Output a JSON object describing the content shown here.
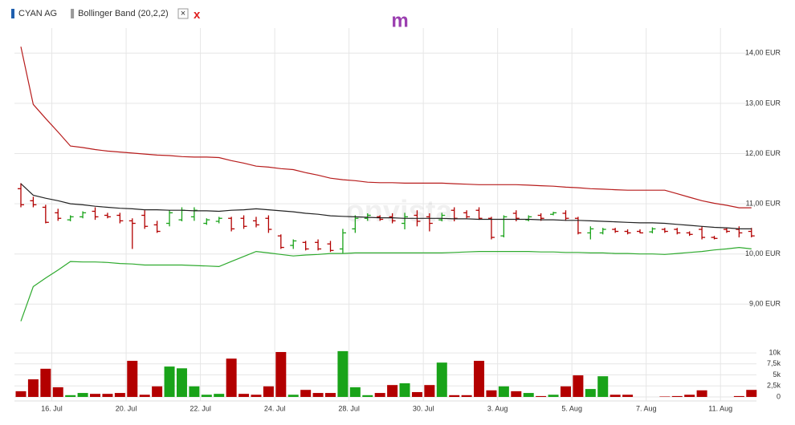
{
  "legend": {
    "close_button": "×",
    "remove": "x"
  },
  "logo": "m",
  "chart_data": [
    {
      "type": "ohlc",
      "watermark": "onvista",
      "categories": [
        null,
        null,
        null,
        "16. Jul",
        null,
        null,
        null,
        null,
        null,
        "20. Jul",
        null,
        null,
        null,
        null,
        null,
        "22. Jul",
        null,
        null,
        null,
        null,
        null,
        "24. Jul",
        null,
        null,
        null,
        null,
        null,
        "28. Jul",
        null,
        null,
        null,
        null,
        null,
        "30. Jul",
        null,
        null,
        null,
        null,
        null,
        "3. Aug",
        null,
        null,
        null,
        null,
        null,
        "5. Aug",
        null,
        null,
        null,
        null,
        null,
        "7. Aug",
        null,
        null,
        null,
        null,
        null,
        "11. Aug",
        null,
        null
      ],
      "series": [
        {
          "name": "CYAN AG",
          "color": "#1f5fae",
          "up_color": "#19a319",
          "down_color": "#b30000",
          "open": [
            11.3,
            11.06,
            10.93,
            10.82,
            10.68,
            10.74,
            10.85,
            10.77,
            10.77,
            10.66,
            10.77,
            10.58,
            10.61,
            10.68,
            10.74,
            10.61,
            10.65,
            10.71,
            10.71,
            10.66,
            10.71,
            10.36,
            10.17,
            10.23,
            10.23,
            10.2,
            10.1,
            10.5,
            10.71,
            10.74,
            10.74,
            10.61,
            10.77,
            10.74,
            10.68,
            10.87,
            10.82,
            10.87,
            10.71,
            10.36,
            10.81,
            10.68,
            10.77,
            10.79,
            10.81,
            10.71,
            10.42,
            10.42,
            10.49,
            10.45,
            10.45,
            10.44,
            10.49,
            10.49,
            10.42,
            10.49,
            10.33,
            10.49,
            10.49,
            10.45
          ],
          "high": [
            11.41,
            11.14,
            10.98,
            10.9,
            10.77,
            10.85,
            10.93,
            10.82,
            10.82,
            10.71,
            10.87,
            10.66,
            10.87,
            10.93,
            10.93,
            10.71,
            10.74,
            10.74,
            10.77,
            10.74,
            10.77,
            10.39,
            10.29,
            10.26,
            10.29,
            10.26,
            10.5,
            10.77,
            10.81,
            10.77,
            10.81,
            10.82,
            10.87,
            10.81,
            10.82,
            10.93,
            10.87,
            10.93,
            10.74,
            10.77,
            10.87,
            10.77,
            10.81,
            10.84,
            10.87,
            10.74,
            10.55,
            10.52,
            10.52,
            10.49,
            10.49,
            10.53,
            10.52,
            10.52,
            10.45,
            10.55,
            10.36,
            10.52,
            10.55,
            10.52
          ],
          "low": [
            10.93,
            10.93,
            10.61,
            10.66,
            10.65,
            10.71,
            10.68,
            10.71,
            10.61,
            10.1,
            10.5,
            10.42,
            10.55,
            10.65,
            10.66,
            10.58,
            10.61,
            10.45,
            10.5,
            10.53,
            10.42,
            10.1,
            10.1,
            10.07,
            10.07,
            10.04,
            10.02,
            10.42,
            10.66,
            10.66,
            10.61,
            10.49,
            10.55,
            10.45,
            10.65,
            10.65,
            10.71,
            10.68,
            10.29,
            10.33,
            10.65,
            10.65,
            10.66,
            10.77,
            10.66,
            10.39,
            10.29,
            10.39,
            10.42,
            10.39,
            10.41,
            10.41,
            10.42,
            10.39,
            10.36,
            10.29,
            10.29,
            10.42,
            10.33,
            10.33
          ],
          "close": [
            10.98,
            10.98,
            10.63,
            10.71,
            10.74,
            10.82,
            10.74,
            10.74,
            10.66,
            10.61,
            10.55,
            10.45,
            10.82,
            10.87,
            10.87,
            10.68,
            10.71,
            10.5,
            10.55,
            10.58,
            10.49,
            10.13,
            10.26,
            10.1,
            10.1,
            10.07,
            10.42,
            10.71,
            10.77,
            10.69,
            10.66,
            10.74,
            10.65,
            10.61,
            10.77,
            10.71,
            10.74,
            10.71,
            10.33,
            10.74,
            10.71,
            10.74,
            10.71,
            10.82,
            10.71,
            10.42,
            10.5,
            10.49,
            10.45,
            10.42,
            10.42,
            10.5,
            10.45,
            10.42,
            10.39,
            10.33,
            10.31,
            10.45,
            10.42,
            10.36
          ]
        },
        {
          "name": "Bollinger Band (20,2,2)",
          "color": "#999999",
          "bands": [
            {
              "color": "#b71c1c",
              "values": [
                14.13,
                12.98,
                12.7,
                12.43,
                12.15,
                12.12,
                12.08,
                12.05,
                12.03,
                12.01,
                11.99,
                11.97,
                11.96,
                11.94,
                11.93,
                11.93,
                11.92,
                11.86,
                11.81,
                11.75,
                11.73,
                11.7,
                11.68,
                11.62,
                11.57,
                11.51,
                11.48,
                11.46,
                11.43,
                11.42,
                11.42,
                11.41,
                11.41,
                11.41,
                11.41,
                11.4,
                11.39,
                11.38,
                11.38,
                11.38,
                11.38,
                11.37,
                11.36,
                11.35,
                11.33,
                11.32,
                11.3,
                11.29,
                11.28,
                11.27,
                11.27,
                11.27,
                11.27,
                11.2,
                11.13,
                11.06,
                11.01,
                10.97,
                10.92,
                10.92
              ]
            },
            {
              "color": "#222222",
              "values": [
                11.4,
                11.17,
                11.11,
                11.06,
                11.0,
                10.98,
                10.95,
                10.93,
                10.91,
                10.9,
                10.88,
                10.88,
                10.87,
                10.87,
                10.86,
                10.86,
                10.85,
                10.87,
                10.88,
                10.9,
                10.88,
                10.86,
                10.84,
                10.81,
                10.79,
                10.76,
                10.75,
                10.74,
                10.73,
                10.72,
                10.72,
                10.71,
                10.71,
                10.71,
                10.71,
                10.7,
                10.7,
                10.69,
                10.69,
                10.69,
                10.69,
                10.69,
                10.68,
                10.68,
                10.67,
                10.67,
                10.66,
                10.65,
                10.64,
                10.63,
                10.62,
                10.62,
                10.61,
                10.59,
                10.57,
                10.55,
                10.53,
                10.52,
                10.5,
                10.5
              ]
            },
            {
              "color": "#2eaa2e",
              "values": [
                8.66,
                9.35,
                9.52,
                9.68,
                9.85,
                9.84,
                9.84,
                9.83,
                9.81,
                9.8,
                9.78,
                9.78,
                9.78,
                9.78,
                9.77,
                9.76,
                9.75,
                9.85,
                9.95,
                10.05,
                10.02,
                9.99,
                9.96,
                9.98,
                9.99,
                10.01,
                10.01,
                10.02,
                10.02,
                10.02,
                10.02,
                10.02,
                10.02,
                10.02,
                10.02,
                10.03,
                10.04,
                10.05,
                10.05,
                10.05,
                10.05,
                10.05,
                10.04,
                10.04,
                10.03,
                10.03,
                10.02,
                10.02,
                10.01,
                10.01,
                10.0,
                10.0,
                9.99,
                10.01,
                10.03,
                10.05,
                10.08,
                10.1,
                10.13,
                10.1
              ]
            }
          ]
        }
      ],
      "ylim": [
        8.27,
        14.5
      ],
      "yticks": [
        {
          "value": 9,
          "label": "9,00 EUR"
        },
        {
          "value": 10,
          "label": "10,00 EUR"
        },
        {
          "value": 11,
          "label": "11,00 EUR"
        },
        {
          "value": 12,
          "label": "12,00 EUR"
        },
        {
          "value": 13,
          "label": "13,00 EUR"
        },
        {
          "value": 14,
          "label": "14,00 EUR"
        }
      ],
      "grid": true
    },
    {
      "type": "bar",
      "values": [
        1.3,
        4.0,
        6.4,
        2.2,
        0.4,
        0.9,
        0.7,
        0.7,
        0.9,
        8.2,
        0.5,
        2.4,
        6.9,
        6.5,
        2.4,
        0.5,
        0.7,
        8.7,
        0.7,
        0.5,
        2.4,
        10.2,
        0.5,
        1.6,
        0.9,
        0.9,
        10.4,
        2.2,
        0.4,
        0.9,
        2.7,
        3.1,
        1.1,
        2.7,
        7.8,
        0.4,
        0.4,
        8.2,
        1.5,
        2.4,
        1.3,
        0.9,
        0.2,
        0.5,
        2.4,
        4.9,
        1.8,
        4.7,
        0.5,
        0.5,
        0,
        0,
        0.1,
        0.2,
        0.5,
        1.5,
        0,
        0,
        0.2,
        1.6
      ],
      "ylim": [
        0,
        12.2
      ],
      "yticks": [
        0,
        {
          "value": 2.5,
          "label": "2,5k"
        },
        {
          "value": 5,
          "label": "5k"
        },
        {
          "value": 7.5,
          "label": "7,5k"
        },
        {
          "value": 10,
          "label": "10k"
        }
      ],
      "grid": true
    }
  ]
}
